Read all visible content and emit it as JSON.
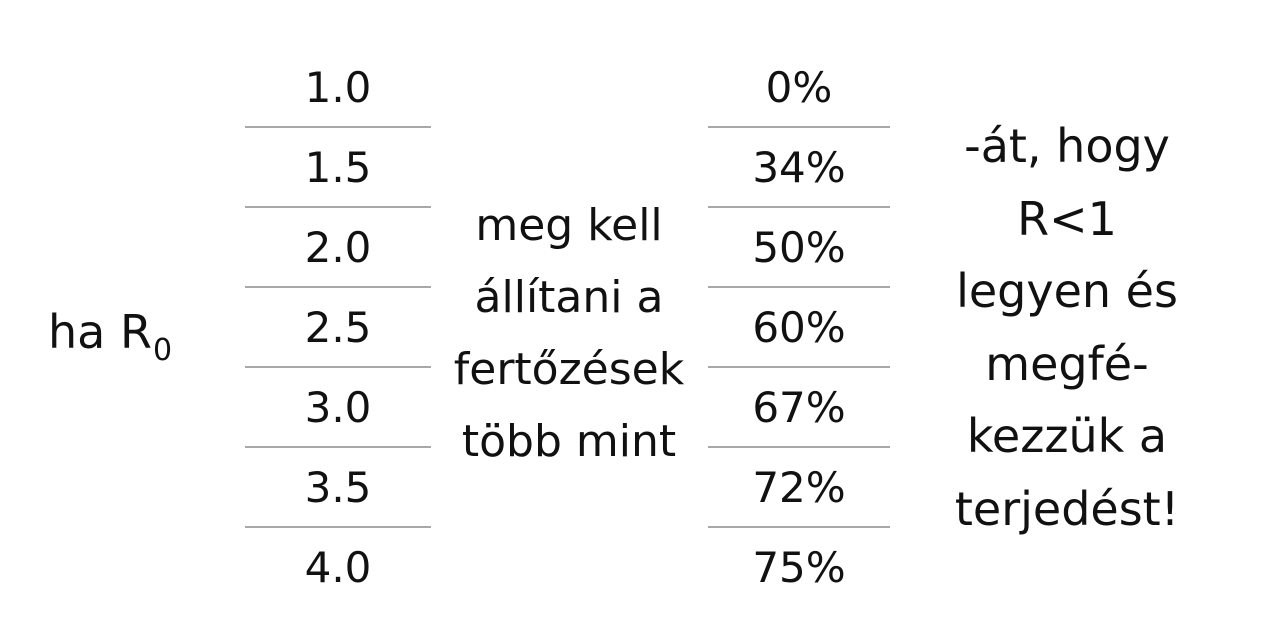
{
  "prefix": {
    "text": "ha R",
    "subscript": "0"
  },
  "r0_values": [
    "1.0",
    "1.5",
    "2.0",
    "2.5",
    "3.0",
    "3.5",
    "4.0"
  ],
  "middle_text": [
    "meg kell",
    "állítani a",
    "fertőzések",
    "több mint"
  ],
  "percentages": [
    "0%",
    "34%",
    "50%",
    "60%",
    "67%",
    "72%",
    "75%"
  ],
  "right_text": [
    "-át, hogy",
    "R<1",
    "legyen és",
    "megfé-",
    "kezzük a",
    "terjedést!"
  ]
}
